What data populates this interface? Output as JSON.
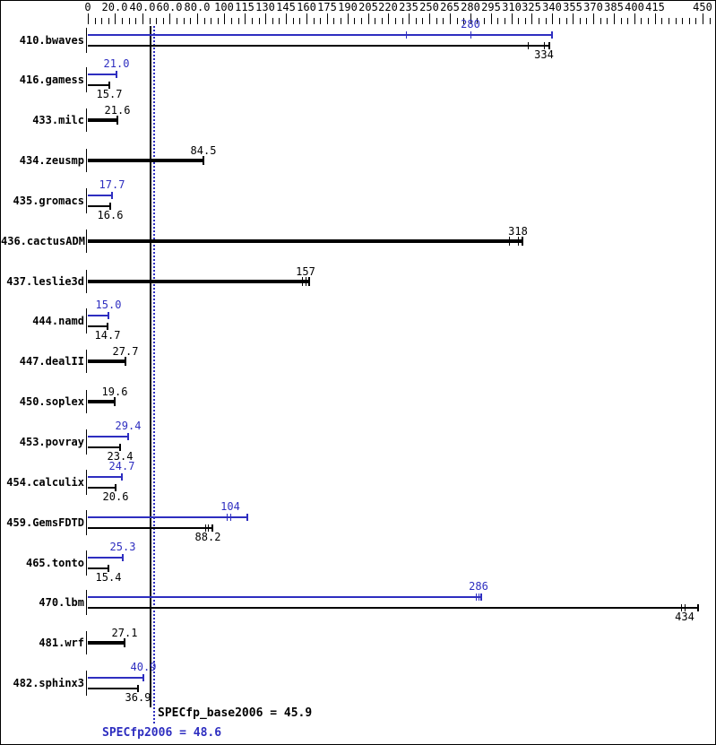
{
  "colors": {
    "background": "#ffffff",
    "border": "#000000",
    "base_black": "#000000",
    "peak_blue": "#2e2ec0"
  },
  "chart_data": {
    "type": "bar",
    "orientation": "horizontal",
    "title": "",
    "xlabel": "",
    "ylabel": "",
    "xlim": [
      0,
      450
    ],
    "grid": false,
    "minor_tick_step": 5,
    "x_tick_labels": [
      "0",
      "20.0",
      "40.0",
      "60.0",
      "80.0",
      "100",
      "115",
      "130",
      "145",
      "160",
      "175",
      "190",
      "205",
      "220",
      "235",
      "250",
      "265",
      "280",
      "295",
      "310",
      "325",
      "340",
      "355",
      "370",
      "385",
      "400",
      "415",
      "450"
    ],
    "x_tick_values": [
      0,
      20,
      40,
      60,
      80,
      100,
      115,
      130,
      145,
      160,
      175,
      190,
      205,
      220,
      235,
      250,
      265,
      280,
      295,
      310,
      325,
      340,
      355,
      370,
      385,
      400,
      415,
      450
    ],
    "categories": [
      "410.bwaves",
      "416.gamess",
      "433.milc",
      "434.zeusmp",
      "435.gromacs",
      "436.cactusADM",
      "437.leslie3d",
      "444.namd",
      "447.dealII",
      "450.soplex",
      "453.povray",
      "454.calculix",
      "459.GemsFDTD",
      "465.tonto",
      "470.lbm",
      "481.wrf",
      "482.sphinx3"
    ],
    "series": [
      {
        "name": "SPECfp2006 (peak)",
        "color": "#2e2ec0",
        "bar_thickness": "thin",
        "values": [
          280,
          21.0,
          null,
          null,
          17.7,
          null,
          null,
          15.0,
          null,
          null,
          29.4,
          24.7,
          104,
          25.3,
          286,
          null,
          40.9
        ],
        "value_labels": [
          "280",
          "21.0",
          null,
          null,
          "17.7",
          null,
          null,
          "15.0",
          null,
          null,
          "29.4",
          "24.7",
          "104",
          "25.3",
          "286",
          null,
          "40.9"
        ],
        "run_marks": [
          [
            233,
            280,
            340
          ],
          [
            21.0
          ],
          null,
          null,
          [
            17.7
          ],
          null,
          null,
          [
            15.0
          ],
          null,
          null,
          [
            29.4
          ],
          [
            24.7
          ],
          [
            102,
            104,
            117
          ],
          [
            25.3
          ],
          [
            284,
            286,
            288
          ],
          null,
          [
            40.9
          ]
        ]
      },
      {
        "name": "SPECfp_base2006 (base)",
        "color": "#000000",
        "bar_thickness": "thin",
        "values": [
          334,
          15.7,
          21.6,
          84.5,
          16.6,
          318,
          157,
          14.7,
          27.7,
          19.6,
          23.4,
          20.6,
          88.2,
          15.4,
          434,
          27.1,
          36.9
        ],
        "value_labels": [
          "334",
          "15.7",
          "21.6",
          "84.5",
          "16.6",
          "318",
          "157",
          "14.7",
          "27.7",
          "19.6",
          "23.4",
          "20.6",
          "88.2",
          "15.4",
          "434",
          "27.1",
          "36.9"
        ],
        "run_marks": [
          [
            322,
            334,
            338
          ],
          [
            15.7
          ],
          [
            21.6
          ],
          [
            84.5
          ],
          [
            16.6
          ],
          [
            308,
            315,
            318
          ],
          [
            157,
            159.5,
            162
          ],
          [
            14.7
          ],
          [
            27.7
          ],
          [
            19.6
          ],
          [
            23.4
          ],
          [
            20.6
          ],
          [
            86,
            88.2,
            91
          ],
          [
            15.4
          ],
          [
            434,
            437,
            447
          ],
          [
            27.1
          ],
          [
            36.9
          ]
        ]
      }
    ],
    "reference_lines": [
      {
        "label": "SPECfp_base2006 = 45.9",
        "value": 45.9,
        "style": "solid",
        "color": "#000000"
      },
      {
        "label": "SPECfp2006 = 48.6",
        "value": 48.6,
        "style": "dotted",
        "color": "#2e2ec0"
      }
    ]
  }
}
